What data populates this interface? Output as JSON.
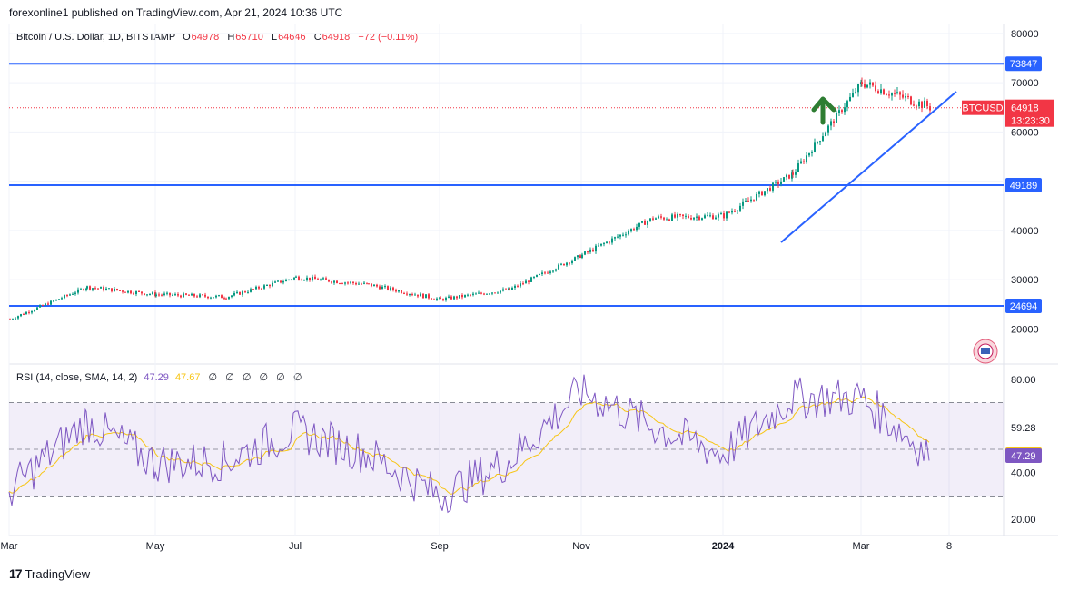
{
  "publisher_line": "forexonline1 published on TradingView.com, Apr 21, 2024 10:36 UTC",
  "price_legend": {
    "symbol": "Bitcoin / U.S. Dollar, 1D, BITSTAMP",
    "o_label": "O",
    "o": "64978",
    "h_label": "H",
    "h": "65710",
    "l_label": "L",
    "l": "64646",
    "c_label": "C",
    "c": "64918",
    "change": "−72 (−0.11%)"
  },
  "rsi_legend": {
    "title": "RSI (14, close, SMA, 14, 2)",
    "rsi_value": "47.29",
    "sma_value": "47.67",
    "na_values": [
      "∅",
      "∅",
      "∅",
      "∅",
      "∅",
      "∅"
    ]
  },
  "footer": {
    "brand": "TradingView",
    "logo_text": "17"
  },
  "colors": {
    "up": "#089981",
    "down": "#f23645",
    "level_line": "#2962ff",
    "rsi_line": "#7e57c2",
    "rsi_sma": "#f7c515",
    "arrow": "#2e7d32"
  },
  "chart_data": [
    {
      "type": "candlestick",
      "title": "Bitcoin / U.S. Dollar, 1D, BITSTAMP",
      "x_ticks": [
        "Mar",
        "May",
        "Jul",
        "Sep",
        "Nov",
        "2024",
        "Mar",
        "8"
      ],
      "y_ticks": [
        20000,
        30000,
        40000,
        50000,
        60000,
        70000,
        80000
      ],
      "y_tick_labels": [
        "20000",
        "30000",
        "40000",
        "",
        "60000",
        "70000",
        "80000"
      ],
      "ylim": [
        14000,
        82000
      ],
      "horizontal_levels": [
        73847,
        49189,
        24694
      ],
      "horizontal_level_labels": [
        "73847",
        "49189",
        "24694"
      ],
      "last_price": 64918,
      "last_price_label": "64918",
      "symbol_badge": "BTCUSD",
      "countdown": "13:23:30",
      "approx_close_series_by_month": [
        {
          "x": "Mar 2023",
          "close": 22000
        },
        {
          "x": "Apr 2023",
          "close": 28500
        },
        {
          "x": "May 2023",
          "close": 27000
        },
        {
          "x": "Jun 2023",
          "close": 26500
        },
        {
          "x": "Jul 2023",
          "close": 30500
        },
        {
          "x": "Aug 2023",
          "close": 29000
        },
        {
          "x": "Sep 2023",
          "close": 26000
        },
        {
          "x": "Oct 2023",
          "close": 28000
        },
        {
          "x": "Nov 2023",
          "close": 35000
        },
        {
          "x": "Dec 2023",
          "close": 42500
        },
        {
          "x": "Jan 2024",
          "close": 43000
        },
        {
          "x": "Feb 2024",
          "close": 51500
        },
        {
          "x": "Mar 2024",
          "close": 70000
        },
        {
          "x": "Apr 2024",
          "close": 64918
        }
      ]
    },
    {
      "type": "line",
      "title": "RSI (14, close, SMA, 14, 2)",
      "y_ticks": [
        20,
        40,
        47.36,
        59.28,
        80
      ],
      "y_tick_labels": [
        "20.00",
        "40.00",
        "47.36",
        "59.28",
        "80.00"
      ],
      "ylim": [
        15,
        85
      ],
      "band": [
        30,
        70
      ],
      "last_rsi": 47.29,
      "last_rsi_label": "47.29",
      "last_sma": 47.67,
      "last_sma_label": "47.67",
      "approx_rsi_by_month": [
        {
          "x": "Mar 2023",
          "rsi": 32
        },
        {
          "x": "Apr 2023",
          "rsi": 62
        },
        {
          "x": "May 2023",
          "rsi": 44
        },
        {
          "x": "Jun 2023",
          "rsi": 45
        },
        {
          "x": "Jul 2023",
          "rsi": 58
        },
        {
          "x": "Aug 2023",
          "rsi": 48
        },
        {
          "x": "Sep 2023",
          "rsi": 30
        },
        {
          "x": "Oct 2023",
          "rsi": 45
        },
        {
          "x": "Nov 2023",
          "rsi": 75
        },
        {
          "x": "Dec 2023",
          "rsi": 60
        },
        {
          "x": "Jan 2024",
          "rsi": 48
        },
        {
          "x": "Feb 2024",
          "rsi": 72
        },
        {
          "x": "Mar 2024",
          "rsi": 72
        },
        {
          "x": "Apr 2024",
          "rsi": 47.29
        }
      ]
    }
  ]
}
